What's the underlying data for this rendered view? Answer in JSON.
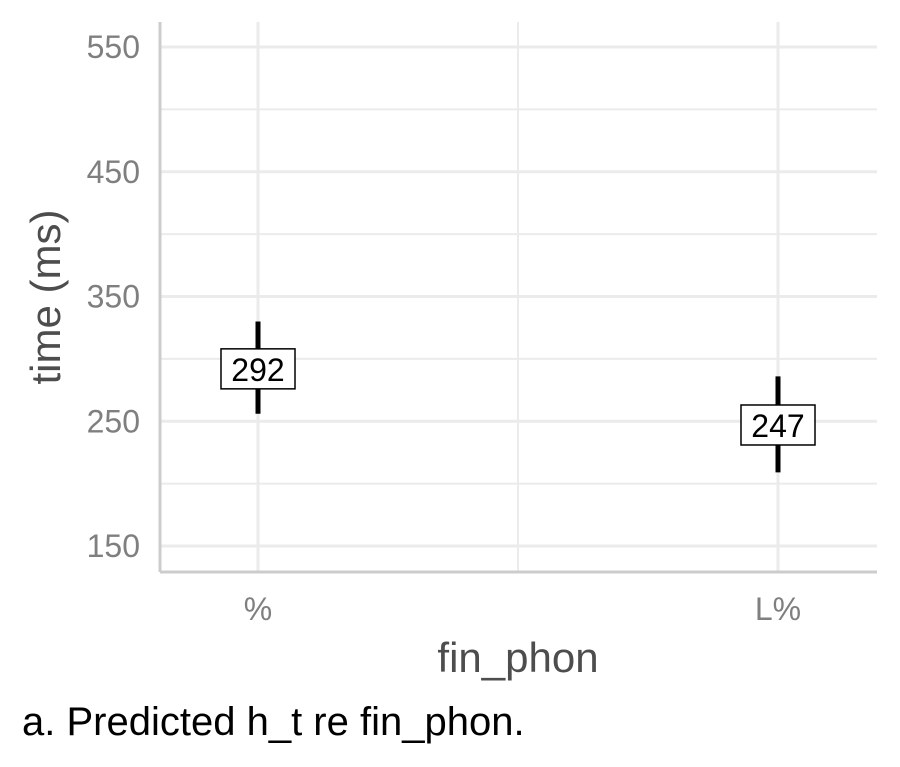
{
  "chart_data": {
    "type": "scatter",
    "categories": [
      "%",
      "L%"
    ],
    "values": [
      292,
      247
    ],
    "error_low": [
      256,
      209
    ],
    "error_high": [
      330,
      286
    ],
    "data_labels": [
      "292",
      "247"
    ],
    "xlabel": "fin_phon",
    "ylabel": "time (ms)",
    "ylim": [
      130,
      570
    ],
    "yticks": [
      150,
      250,
      350,
      450,
      550
    ],
    "ytick_labels": [
      "150",
      "250",
      "350",
      "450",
      "550"
    ],
    "grid": true,
    "colors": {
      "grid": "#ebebeb",
      "axis": "#cccccc",
      "marks": "#000000"
    }
  },
  "caption": "a. Predicted h_t re fin_phon."
}
